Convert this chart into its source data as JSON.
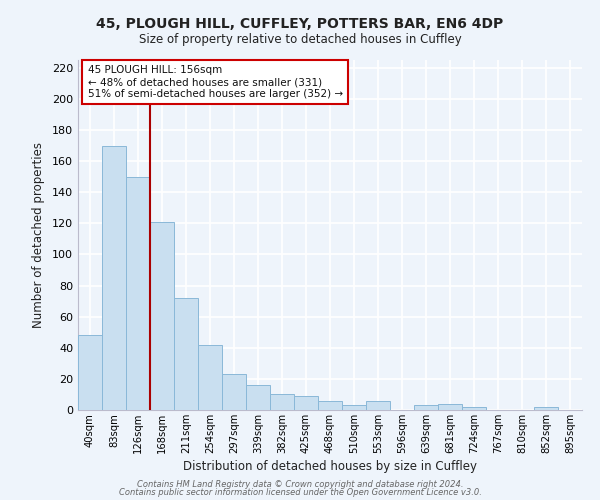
{
  "title1": "45, PLOUGH HILL, CUFFLEY, POTTERS BAR, EN6 4DP",
  "title2": "Size of property relative to detached houses in Cuffley",
  "xlabel": "Distribution of detached houses by size in Cuffley",
  "ylabel": "Number of detached properties",
  "bar_color": "#c9dff0",
  "bar_edge_color": "#8ab8d8",
  "bg_color": "#eef4fb",
  "grid_color": "#ffffff",
  "vline_color": "#aa0000",
  "categories": [
    "40sqm",
    "83sqm",
    "126sqm",
    "168sqm",
    "211sqm",
    "254sqm",
    "297sqm",
    "339sqm",
    "382sqm",
    "425sqm",
    "468sqm",
    "510sqm",
    "553sqm",
    "596sqm",
    "639sqm",
    "681sqm",
    "724sqm",
    "767sqm",
    "810sqm",
    "852sqm",
    "895sqm"
  ],
  "values": [
    48,
    170,
    150,
    121,
    72,
    42,
    23,
    16,
    10,
    9,
    6,
    3,
    6,
    0,
    3,
    4,
    2,
    0,
    0,
    2,
    0
  ],
  "ylim": [
    0,
    225
  ],
  "yticks": [
    0,
    20,
    40,
    60,
    80,
    100,
    120,
    140,
    160,
    180,
    200,
    220
  ],
  "vline_x": 2.5,
  "ann_line1": "45 PLOUGH HILL: 156sqm",
  "ann_line2": "← 48% of detached houses are smaller (331)",
  "ann_line3": "51% of semi-detached houses are larger (352) →",
  "footer1": "Contains HM Land Registry data © Crown copyright and database right 2024.",
  "footer2": "Contains public sector information licensed under the Open Government Licence v3.0."
}
